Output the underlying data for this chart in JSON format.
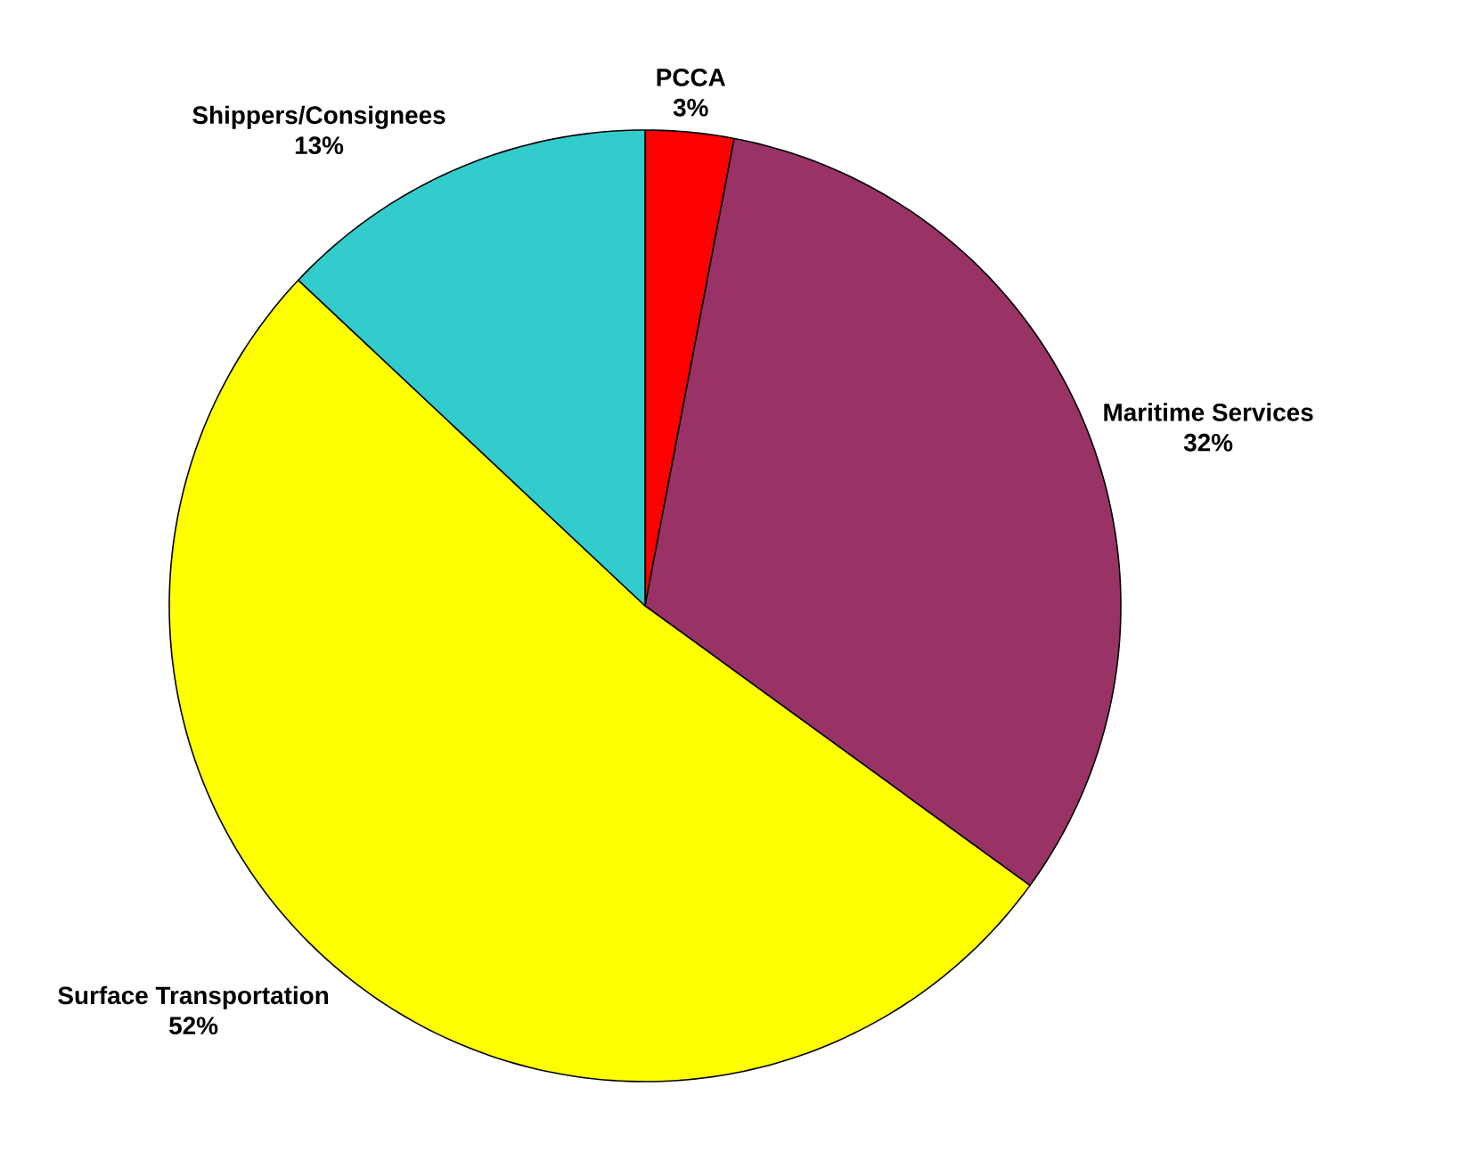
{
  "chart_data": {
    "type": "pie",
    "categories": [
      "PCCA",
      "Maritime Services",
      "Surface Transportation",
      "Shippers/Consignees"
    ],
    "values": [
      3,
      32,
      52,
      13
    ],
    "value_labels": [
      "3%",
      "32%",
      "52%",
      "13%"
    ],
    "colors": [
      "#ff0000",
      "#993366",
      "#ffff00",
      "#33cccc"
    ]
  }
}
